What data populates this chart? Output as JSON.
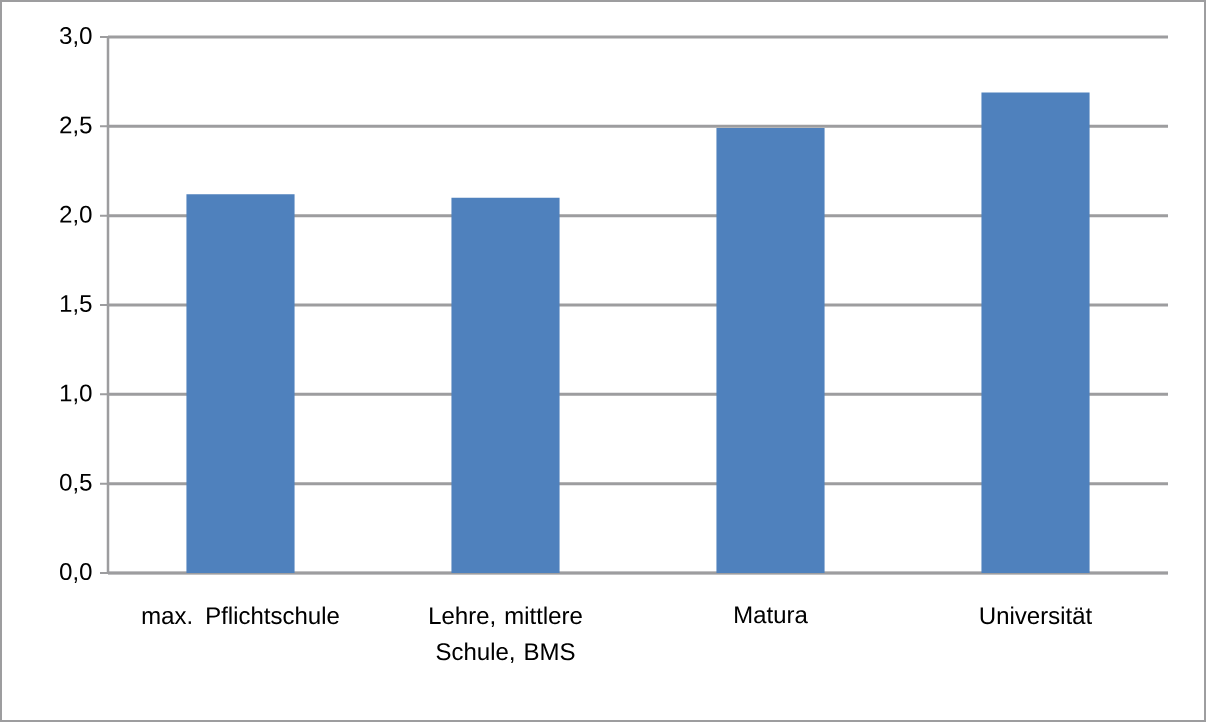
{
  "chart_data": {
    "type": "bar",
    "categories": [
      "max. Pflichtschule",
      "Lehre, mittlere Schule, BMS",
      "Matura",
      "Universität"
    ],
    "values": [
      2.12,
      2.1,
      2.49,
      2.69
    ],
    "color": "#4f81bd",
    "ylim": [
      0,
      3
    ],
    "yticks": [
      {
        "value": 0,
        "label": "0,0"
      },
      {
        "value": 0.5,
        "label": "0,5"
      },
      {
        "value": 1,
        "label": "1,0"
      },
      {
        "value": 1.5,
        "label": "1,5"
      },
      {
        "value": 2,
        "label": "2,0"
      },
      {
        "value": 2.5,
        "label": "2,5"
      },
      {
        "value": 3,
        "label": "3,0"
      }
    ],
    "grid": "y"
  }
}
